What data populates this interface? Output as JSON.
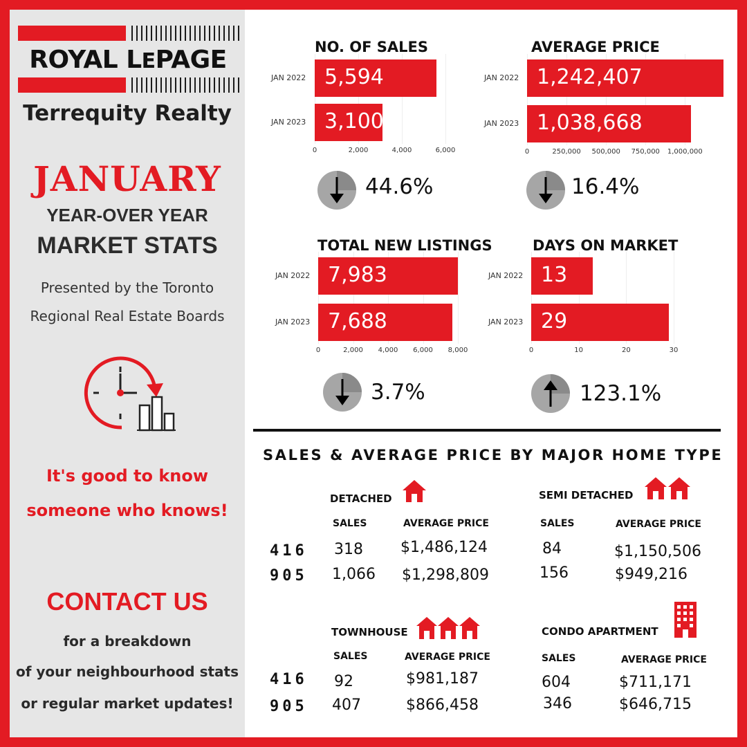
{
  "brand": {
    "logo_main": "ROYAL LEPAGE",
    "logo_le": "LE",
    "brokerage": "Terrequity Realty"
  },
  "header": {
    "month": "JANUARY",
    "line1": "YEAR-OVER YEAR",
    "line2": "MARKET STATS",
    "presented_1": "Presented by the Toronto",
    "presented_2": "Regional Real Estate Boards"
  },
  "slogan": {
    "line1": "It's good to know",
    "line2": "someone who knows!"
  },
  "contact": {
    "title": "CONTACT US",
    "line1": "for a breakdown",
    "line2": "of your neighbourhood stats",
    "line3": "or regular market updates!"
  },
  "colors": {
    "accent": "#e31b23",
    "panel": "#e6e6e6",
    "arrow_circle": "#a6a6a6"
  },
  "chart_data": [
    {
      "type": "bar",
      "title": "NO. OF SALES",
      "categories": [
        "JAN 2022",
        "JAN 2023"
      ],
      "values": [
        5594,
        3100
      ],
      "value_labels": [
        "5,594",
        "3,100"
      ],
      "xlim": [
        0,
        6000
      ],
      "ticks": [
        0,
        2000,
        4000,
        6000
      ],
      "tick_labels": [
        "0",
        "2,000",
        "4,000",
        "6,000"
      ],
      "change": {
        "direction": "down",
        "label": "44.6%"
      }
    },
    {
      "type": "bar",
      "title": "AVERAGE PRICE",
      "categories": [
        "JAN 2022",
        "JAN 2023"
      ],
      "values": [
        1242407,
        1038668
      ],
      "value_labels": [
        "1,242,407",
        "1,038,668"
      ],
      "xlim": [
        0,
        1250000
      ],
      "ticks": [
        0,
        250000,
        500000,
        750000,
        1000000
      ],
      "tick_labels": [
        "0",
        "250,000",
        "500,000",
        "750,000",
        "1,000,000"
      ],
      "change": {
        "direction": "down",
        "label": "16.4%"
      }
    },
    {
      "type": "bar",
      "title": "TOTAL NEW LISTINGS",
      "categories": [
        "JAN 2022",
        "JAN 2023"
      ],
      "values": [
        7983,
        7688
      ],
      "value_labels": [
        "7,983",
        "7,688"
      ],
      "xlim": [
        0,
        8000
      ],
      "ticks": [
        0,
        2000,
        4000,
        6000,
        8000
      ],
      "tick_labels": [
        "0",
        "2,000",
        "4,000",
        "6,000",
        "8,000"
      ],
      "change": {
        "direction": "down",
        "label": "3.7%"
      }
    },
    {
      "type": "bar",
      "title": "DAYS ON MARKET",
      "categories": [
        "JAN 2022",
        "JAN 2023"
      ],
      "values": [
        13,
        29
      ],
      "value_labels": [
        "13",
        "29"
      ],
      "xlim": [
        0,
        30
      ],
      "ticks": [
        0,
        10,
        20,
        30
      ],
      "tick_labels": [
        "0",
        "10",
        "20",
        "30"
      ],
      "change": {
        "direction": "up",
        "label": "123.1%"
      }
    },
    {
      "type": "table",
      "title": "SALES & AVERAGE PRICE BY MAJOR HOME TYPE",
      "area_codes": [
        "416",
        "905"
      ],
      "col_sales": "SALES",
      "col_price": "AVERAGE PRICE",
      "home_types": [
        {
          "name": "DETACHED",
          "icon": "house-icon",
          "rows": [
            {
              "sales": "318",
              "price": "$1,486,124"
            },
            {
              "sales": "1,066",
              "price": "$1,298,809"
            }
          ]
        },
        {
          "name": "SEMI DETACHED",
          "icon": "semi-house-icon",
          "rows": [
            {
              "sales": "84",
              "price": "$1,150,506"
            },
            {
              "sales": "156",
              "price": "$949,216"
            }
          ]
        },
        {
          "name": "TOWNHOUSE",
          "icon": "townhouse-icon",
          "rows": [
            {
              "sales": "92",
              "price": "$981,187"
            },
            {
              "sales": "407",
              "price": "$866,458"
            }
          ]
        },
        {
          "name": "CONDO APARTMENT",
          "icon": "condo-building-icon",
          "rows": [
            {
              "sales": "604",
              "price": "$711,171"
            },
            {
              "sales": "346",
              "price": "$646,715"
            }
          ]
        }
      ]
    }
  ]
}
